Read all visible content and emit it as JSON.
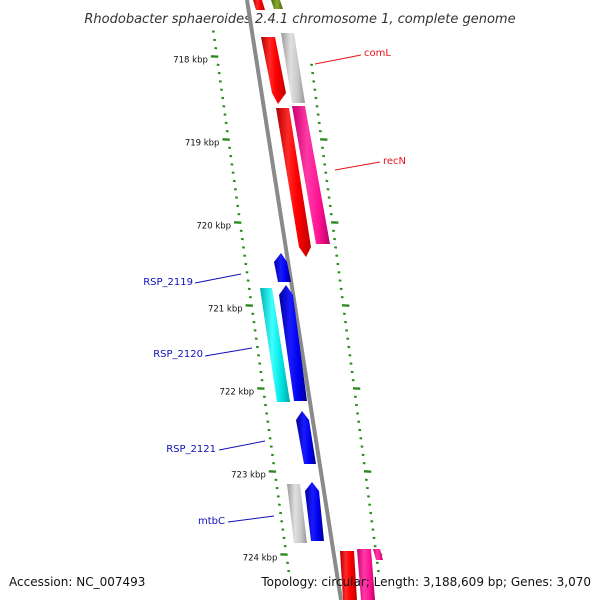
{
  "title": "Rhodobacter sphaeroides 2.4.1 chromosome 1, complete genome",
  "footer": {
    "accession": "Accession: NC_007493",
    "summary": "Topology: circular; Length: 3,188,609 bp; Genes: 3,070"
  },
  "scale_labels": [
    "718 kbp",
    "719 kbp",
    "720 kbp",
    "721 kbp",
    "722 kbp",
    "723 kbp",
    "724 kbp"
  ],
  "gene_labels": [
    {
      "text": "comL",
      "color": "#e8141c"
    },
    {
      "text": "recN",
      "color": "#e8141c"
    },
    {
      "text": "RSP_2119",
      "color": "#1010b8"
    },
    {
      "text": "RSP_2120",
      "color": "#1010b8"
    },
    {
      "text": "RSP_2121",
      "color": "#1010b8"
    },
    {
      "text": "mtbC",
      "color": "#1010b8"
    }
  ],
  "colors": {
    "backbone": "#8a8a8a",
    "tick": "#2a8a1e",
    "red": "#ff0000",
    "pink": "#ff1493",
    "blue": "#0000ee",
    "cyan": "#00e5e5",
    "gray": "#c4c4c4",
    "olive": "#6e8c1e"
  }
}
